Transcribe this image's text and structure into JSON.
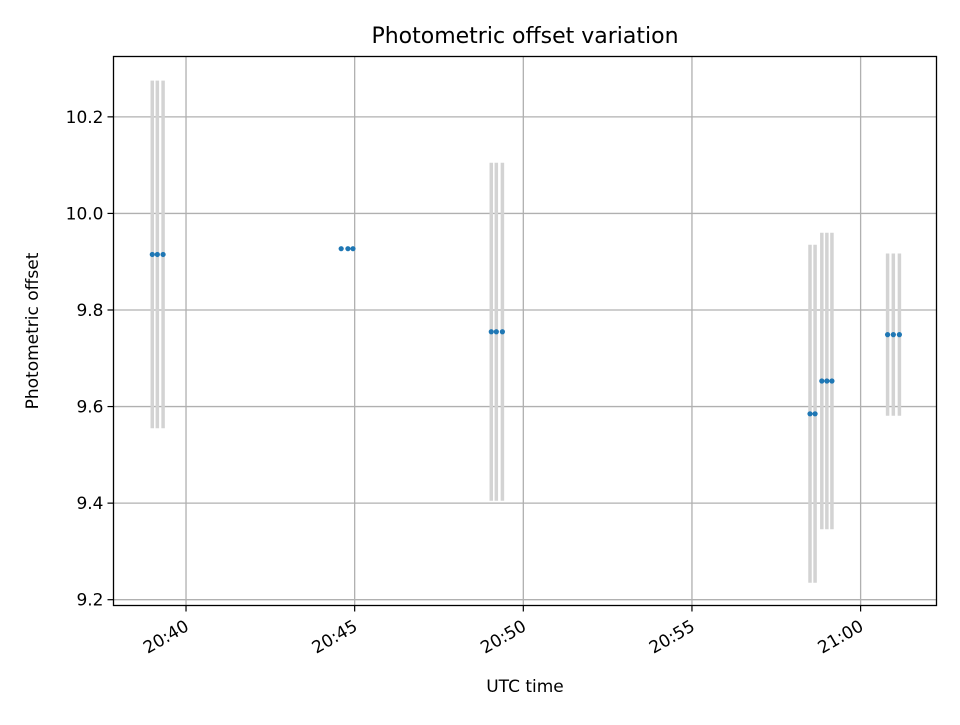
{
  "chart_data": {
    "type": "scatter",
    "title": "Photometric offset variation",
    "xlabel": "UTC time",
    "ylabel": "Photometric offset",
    "grid": true,
    "x_ticks": [
      "20:40",
      "20:45",
      "20:50",
      "20:55",
      "21:00"
    ],
    "x_tick_minutes": [
      40,
      45,
      50,
      55,
      60
    ],
    "xlim_minutes_after_20h": [
      37.85,
      62.25
    ],
    "y_ticks": [
      "9.2",
      "9.4",
      "9.6",
      "9.8",
      "10.0",
      "10.2"
    ],
    "y_tick_values": [
      9.2,
      9.4,
      9.6,
      9.8,
      10.0,
      10.2
    ],
    "ylim": [
      9.188,
      10.325
    ],
    "points": [
      {
        "t": 39.0,
        "y": 9.915,
        "err": 0.36
      },
      {
        "t": 39.15,
        "y": 9.915,
        "err": 0.36
      },
      {
        "t": 39.32,
        "y": 9.915,
        "err": 0.36
      },
      {
        "t": 44.6,
        "y": 9.927,
        "err": 0.0
      },
      {
        "t": 44.8,
        "y": 9.927,
        "err": 0.0
      },
      {
        "t": 44.95,
        "y": 9.927,
        "err": 0.0
      },
      {
        "t": 49.05,
        "y": 9.755,
        "err": 0.35
      },
      {
        "t": 49.2,
        "y": 9.755,
        "err": 0.35
      },
      {
        "t": 49.38,
        "y": 9.755,
        "err": 0.35
      },
      {
        "t": 58.5,
        "y": 9.585,
        "err": 0.35
      },
      {
        "t": 58.65,
        "y": 9.585,
        "err": 0.35
      },
      {
        "t": 58.85,
        "y": 9.653,
        "err": 0.307
      },
      {
        "t": 59.0,
        "y": 9.653,
        "err": 0.307
      },
      {
        "t": 59.15,
        "y": 9.653,
        "err": 0.307
      },
      {
        "t": 60.8,
        "y": 9.749,
        "err": 0.168
      },
      {
        "t": 60.97,
        "y": 9.749,
        "err": 0.168
      },
      {
        "t": 61.15,
        "y": 9.749,
        "err": 0.168
      }
    ],
    "colors": {
      "points": "#1f77b4",
      "errorbars": "#d3d3d3",
      "grid": "#b0b0b0",
      "axes": "#000000"
    }
  }
}
